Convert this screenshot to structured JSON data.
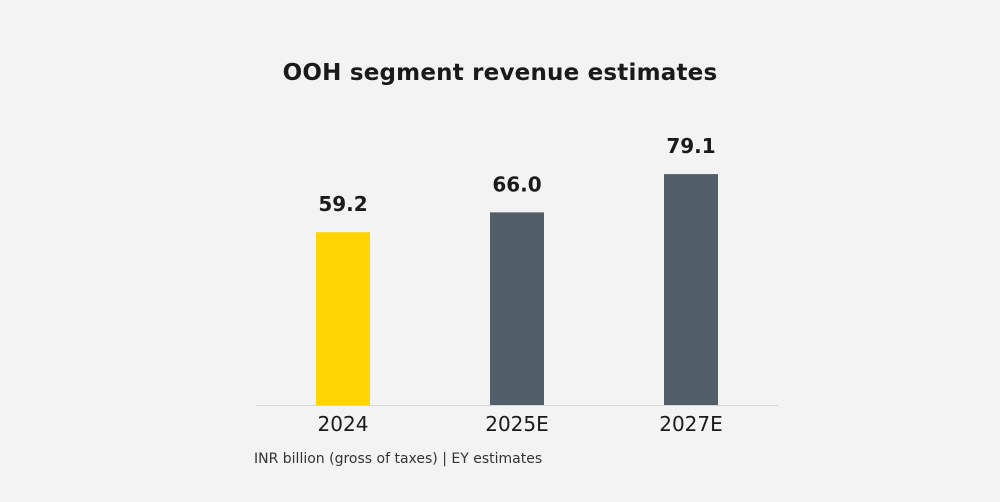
{
  "chart_data": {
    "type": "bar",
    "title": "OOH segment revenue estimates",
    "categories": [
      "2024",
      "2025E",
      "2027E"
    ],
    "values": [
      59.2,
      66.0,
      79.1
    ],
    "value_labels": [
      "59.2",
      "66.0",
      "79.1"
    ],
    "bar_colors": [
      "#ffd500",
      "#525e69",
      "#525e69"
    ],
    "ylim": [
      0,
      100
    ],
    "grid": false,
    "footnote": "INR billion (gross of taxes) | EY estimates"
  }
}
